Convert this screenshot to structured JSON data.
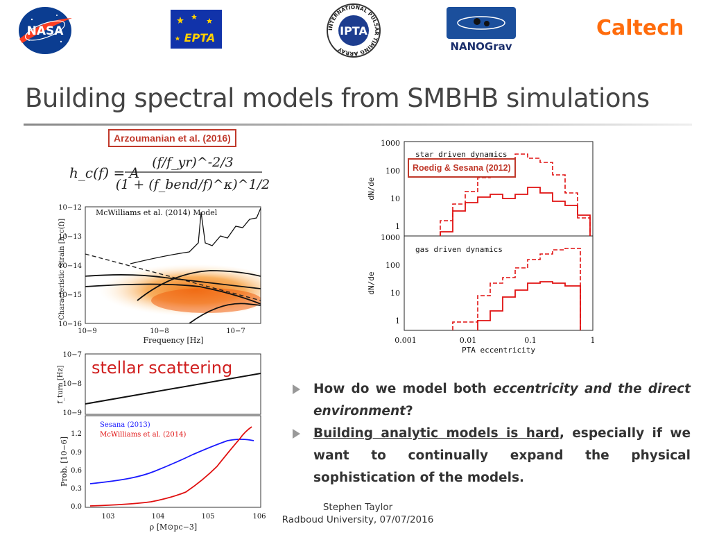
{
  "logos": {
    "nasa": "NASA",
    "epta": "EPTA",
    "ipta_center": "IPTA",
    "ipta_ring": "INTERNATIONAL PULSAR TIMING ARRAY",
    "nanograv": "NANOGrav",
    "caltech": "Caltech"
  },
  "slide": {
    "title": "Building spectral models from SMBHB simulations"
  },
  "citations": {
    "arzoumanian": "Arzoumanian et al. (2016)",
    "roedig": "Roedig & Sesana (2012)"
  },
  "equation": {
    "lhs": "h_c(f) = A",
    "numerator": "(f/f_yr)^-2/3",
    "denominator": "(1 + (f_bend/f)^κ)^1/2"
  },
  "strain_plot": {
    "legend": "McWilliams et al. (2014) Model",
    "ylabel": "Characteristic Strain [h_c(f)]",
    "xlabel": "Frequency [Hz]",
    "yticks": [
      "10−12",
      "10−13",
      "10−14",
      "10−15",
      "10−16"
    ],
    "xticks": [
      "10−9",
      "10−8",
      "10−7"
    ]
  },
  "fturn_plot": {
    "annotation": "stellar scattering",
    "ylabel": "f_turn [Hz]",
    "yticks": [
      "10−7",
      "10−8",
      "10−9"
    ]
  },
  "prob_plot": {
    "ylabel": "Prob. [10−6]",
    "xlabel": "ρ [M⊙pc−3]",
    "yticks": [
      "1.2",
      "0.9",
      "0.6",
      "0.3",
      "0.0"
    ],
    "xticks": [
      "103",
      "104",
      "105",
      "106"
    ],
    "legend": [
      {
        "name": "Sesana (2013)",
        "color": "#1a1aff"
      },
      {
        "name": "McWilliams et al. (2014)",
        "color": "#e01010"
      }
    ]
  },
  "ecc_plot": {
    "panel_top_label": "star driven dynamics",
    "panel_bottom_label": "gas driven dynamics",
    "ylabel": "dN/de",
    "xlabel": "PTA eccentricity",
    "yticks": [
      "1000",
      "100",
      "10",
      "1"
    ],
    "xticks": [
      "0.001",
      "0.01",
      "0.1",
      "1"
    ],
    "color": "#e01010"
  },
  "bullets": [
    {
      "parts": [
        {
          "text": "How do we model both ",
          "style": "plain"
        },
        {
          "text": "eccentricity and the direct environment",
          "style": "em"
        },
        {
          "text": "?",
          "style": "plain"
        }
      ]
    },
    {
      "parts": [
        {
          "text": "Building analytic models is hard",
          "style": "u"
        },
        {
          "text": ", especially if we want to continually expand the physical sophistication of the models.",
          "style": "plain"
        }
      ]
    }
  ],
  "footer": {
    "name": "Stephen Taylor",
    "affiliation": "Radboud University, 07/07/2016"
  }
}
